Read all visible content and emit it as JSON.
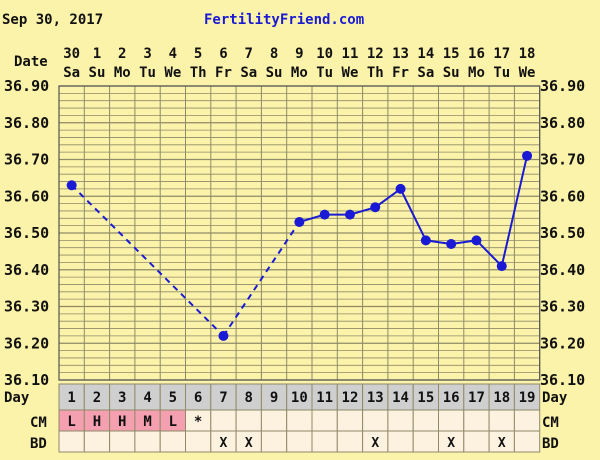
{
  "chart_data": {
    "type": "line",
    "header_date": "Sep 30, 2017",
    "site_name": "FertilityFriend.com",
    "date_label": "Date",
    "day_label": "Day",
    "cm_label": "CM",
    "bd_label": "BD",
    "dates": [
      "30",
      "1",
      "2",
      "3",
      "4",
      "5",
      "6",
      "7",
      "8",
      "9",
      "10",
      "11",
      "12",
      "13",
      "14",
      "15",
      "16",
      "17",
      "18"
    ],
    "weekdays": [
      "Sa",
      "Su",
      "Mo",
      "Tu",
      "We",
      "Th",
      "Fr",
      "Sa",
      "Su",
      "Mo",
      "Tu",
      "We",
      "Th",
      "Fr",
      "Sa",
      "Su",
      "Mo",
      "Tu",
      "We"
    ],
    "days": [
      "1",
      "2",
      "3",
      "4",
      "5",
      "6",
      "7",
      "8",
      "9",
      "10",
      "11",
      "12",
      "13",
      "14",
      "15",
      "16",
      "17",
      "18",
      "19"
    ],
    "ylim": [
      36.1,
      36.9
    ],
    "y_ticks": [
      "36.90",
      "36.80",
      "36.70",
      "36.60",
      "36.50",
      "36.40",
      "36.30",
      "36.20",
      "36.10"
    ],
    "temps": [
      36.63,
      null,
      null,
      null,
      null,
      null,
      36.22,
      null,
      null,
      36.53,
      36.55,
      36.55,
      36.57,
      36.62,
      36.48,
      36.47,
      36.48,
      36.41,
      36.71
    ],
    "cm": [
      "L",
      "H",
      "H",
      "M",
      "L",
      "*",
      "",
      "",
      "",
      "",
      "",
      "",
      "",
      "",
      "",
      "",
      "",
      "",
      ""
    ],
    "bd": [
      "",
      "",
      "",
      "",
      "",
      "",
      "X",
      "X",
      "",
      "",
      "",
      "",
      "X",
      "",
      "",
      "X",
      "",
      "X",
      ""
    ],
    "grid": true,
    "colors": {
      "background": "#fbf3a9",
      "grid": "#8f8a68",
      "line": "#1a1ad4",
      "day_row": "#cfcfcf",
      "cm_fill": "#f5a0b0",
      "row_fill": "#fdf1e0",
      "header_text": "#111111",
      "site_text": "#1a1ad4"
    }
  }
}
